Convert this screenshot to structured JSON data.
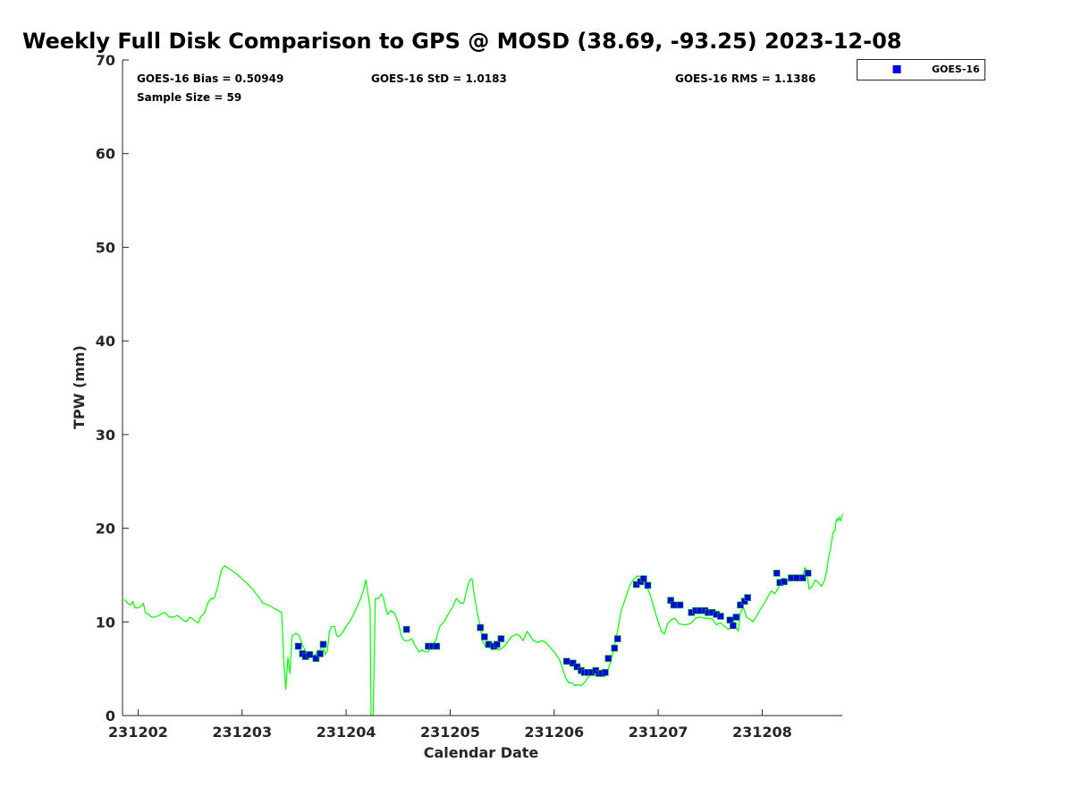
{
  "chart_data": {
    "type": "line",
    "title": "Weekly Full Disk Comparison to GPS @ MOSD (38.69, -93.25) 2023-12-08",
    "xlabel": "Calendar Date",
    "ylabel": "TPW (mm)",
    "ylim": [
      0,
      70
    ],
    "yticks": [
      0,
      10,
      20,
      30,
      40,
      50,
      60,
      70
    ],
    "xlim": [
      -0.15,
      6.77
    ],
    "xticks": [
      {
        "value": 0,
        "label": "231202"
      },
      {
        "value": 1,
        "label": "231203"
      },
      {
        "value": 2,
        "label": "231204"
      },
      {
        "value": 3,
        "label": "231205"
      },
      {
        "value": 4,
        "label": "231206"
      },
      {
        "value": 5,
        "label": "231207"
      },
      {
        "value": 6,
        "label": "231208"
      }
    ],
    "grid": false,
    "legend": {
      "position": "top-right",
      "entries": [
        "GOES-16"
      ]
    },
    "stats": {
      "bias": "GOES-16 Bias = 0.50949",
      "std": "GOES-16 StD = 1.0183",
      "rms": "GOES-16 RMS = 1.1386",
      "sample": "Sample Size = 59"
    },
    "series": [
      {
        "kind": "line",
        "color": "#00ff00",
        "points": [
          [
            -0.13,
            12.4
          ],
          [
            -0.1,
            12.0
          ],
          [
            -0.07,
            11.8
          ],
          [
            -0.05,
            12.2
          ],
          [
            -0.03,
            11.5
          ],
          [
            0.0,
            11.5
          ],
          [
            0.03,
            11.7
          ],
          [
            0.05,
            12.0
          ],
          [
            0.07,
            11.0
          ],
          [
            0.1,
            10.8
          ],
          [
            0.13,
            10.5
          ],
          [
            0.16,
            10.5
          ],
          [
            0.2,
            10.7
          ],
          [
            0.23,
            10.9
          ],
          [
            0.26,
            11.0
          ],
          [
            0.3,
            10.5
          ],
          [
            0.34,
            10.5
          ],
          [
            0.38,
            10.7
          ],
          [
            0.42,
            10.3
          ],
          [
            0.46,
            10.0
          ],
          [
            0.5,
            10.5
          ],
          [
            0.53,
            10.3
          ],
          [
            0.56,
            10.0
          ],
          [
            0.58,
            9.9
          ],
          [
            0.6,
            10.5
          ],
          [
            0.64,
            11.0
          ],
          [
            0.67,
            12.0
          ],
          [
            0.7,
            12.5
          ],
          [
            0.73,
            12.5
          ],
          [
            0.76,
            13.5
          ],
          [
            0.8,
            15.5
          ],
          [
            0.83,
            16.0
          ],
          [
            0.86,
            15.8
          ],
          [
            0.9,
            15.5
          ],
          [
            0.96,
            15.0
          ],
          [
            1.03,
            14.3
          ],
          [
            1.1,
            13.5
          ],
          [
            1.17,
            12.5
          ],
          [
            1.2,
            12.0
          ],
          [
            1.25,
            11.8
          ],
          [
            1.3,
            11.5
          ],
          [
            1.35,
            11.2
          ],
          [
            1.38,
            11.0
          ],
          [
            1.4,
            6.0
          ],
          [
            1.42,
            2.8
          ],
          [
            1.44,
            6.2
          ],
          [
            1.46,
            4.5
          ],
          [
            1.48,
            8.5
          ],
          [
            1.52,
            8.8
          ],
          [
            1.55,
            8.5
          ],
          [
            1.58,
            7.5
          ],
          [
            1.62,
            6.7
          ],
          [
            1.65,
            6.5
          ],
          [
            1.68,
            6.3
          ],
          [
            1.71,
            6.6
          ],
          [
            1.74,
            6.8
          ],
          [
            1.77,
            7.5
          ],
          [
            1.8,
            6.5
          ],
          [
            1.82,
            7.0
          ],
          [
            1.84,
            9.0
          ],
          [
            1.86,
            9.5
          ],
          [
            1.89,
            9.5
          ],
          [
            1.91,
            8.5
          ],
          [
            1.93,
            8.4
          ],
          [
            1.96,
            8.8
          ],
          [
            2.0,
            9.5
          ],
          [
            2.05,
            10.3
          ],
          [
            2.1,
            11.5
          ],
          [
            2.14,
            12.5
          ],
          [
            2.17,
            13.5
          ],
          [
            2.19,
            14.5
          ],
          [
            2.21,
            13.0
          ],
          [
            2.23,
            11.5
          ],
          [
            2.24,
            0.0
          ],
          [
            2.26,
            0.0
          ],
          [
            2.28,
            12.5
          ],
          [
            2.31,
            12.5
          ],
          [
            2.34,
            13.0
          ],
          [
            2.36,
            12.5
          ],
          [
            2.38,
            11.5
          ],
          [
            2.4,
            10.8
          ],
          [
            2.43,
            11.2
          ],
          [
            2.46,
            11.0
          ],
          [
            2.5,
            10.0
          ],
          [
            2.53,
            8.5
          ],
          [
            2.56,
            8.0
          ],
          [
            2.6,
            8.0
          ],
          [
            2.63,
            8.2
          ],
          [
            2.66,
            7.5
          ],
          [
            2.7,
            6.8
          ],
          [
            2.73,
            7.0
          ],
          [
            2.76,
            6.8
          ],
          [
            2.79,
            6.8
          ],
          [
            2.82,
            7.5
          ],
          [
            2.86,
            8.0
          ],
          [
            2.9,
            9.5
          ],
          [
            2.94,
            10.0
          ],
          [
            2.98,
            10.8
          ],
          [
            3.02,
            11.5
          ],
          [
            3.06,
            12.5
          ],
          [
            3.1,
            12.0
          ],
          [
            3.13,
            12.0
          ],
          [
            3.16,
            13.5
          ],
          [
            3.19,
            14.5
          ],
          [
            3.21,
            14.6
          ],
          [
            3.23,
            13.0
          ],
          [
            3.26,
            11.0
          ],
          [
            3.29,
            9.5
          ],
          [
            3.31,
            8.0
          ],
          [
            3.34,
            7.3
          ],
          [
            3.38,
            7.3
          ],
          [
            3.41,
            7.0
          ],
          [
            3.44,
            7.3
          ],
          [
            3.47,
            7.0
          ],
          [
            3.5,
            7.2
          ],
          [
            3.53,
            7.5
          ],
          [
            3.56,
            8.0
          ],
          [
            3.6,
            8.5
          ],
          [
            3.64,
            8.7
          ],
          [
            3.67,
            8.5
          ],
          [
            3.7,
            8.0
          ],
          [
            3.72,
            8.5
          ],
          [
            3.74,
            9.0
          ],
          [
            3.77,
            8.5
          ],
          [
            3.8,
            8.0
          ],
          [
            3.84,
            7.8
          ],
          [
            3.88,
            8.0
          ],
          [
            3.92,
            7.8
          ],
          [
            3.96,
            7.3
          ],
          [
            4.0,
            6.8
          ],
          [
            4.05,
            6.0
          ],
          [
            4.08,
            5.0
          ],
          [
            4.11,
            4.0
          ],
          [
            4.14,
            3.5
          ],
          [
            4.17,
            3.5
          ],
          [
            4.2,
            3.2
          ],
          [
            4.23,
            3.3
          ],
          [
            4.26,
            3.2
          ],
          [
            4.29,
            3.5
          ],
          [
            4.32,
            4.0
          ],
          [
            4.36,
            4.5
          ],
          [
            4.4,
            4.5
          ],
          [
            4.44,
            4.2
          ],
          [
            4.48,
            4.2
          ],
          [
            4.52,
            5.0
          ],
          [
            4.55,
            6.0
          ],
          [
            4.58,
            7.5
          ],
          [
            4.61,
            9.0
          ],
          [
            4.64,
            11.0
          ],
          [
            4.67,
            12.0
          ],
          [
            4.7,
            13.0
          ],
          [
            4.73,
            14.0
          ],
          [
            4.76,
            14.5
          ],
          [
            4.8,
            14.9
          ],
          [
            4.84,
            14.8
          ],
          [
            4.88,
            14.0
          ],
          [
            4.92,
            13.0
          ],
          [
            4.96,
            11.5
          ],
          [
            5.0,
            10.0
          ],
          [
            5.03,
            9.0
          ],
          [
            5.06,
            8.7
          ],
          [
            5.09,
            9.8
          ],
          [
            5.12,
            10.2
          ],
          [
            5.16,
            10.4
          ],
          [
            5.2,
            9.8
          ],
          [
            5.24,
            9.7
          ],
          [
            5.28,
            9.7
          ],
          [
            5.32,
            9.9
          ],
          [
            5.36,
            10.4
          ],
          [
            5.4,
            10.5
          ],
          [
            5.44,
            10.4
          ],
          [
            5.48,
            10.4
          ],
          [
            5.52,
            10.3
          ],
          [
            5.56,
            9.7
          ],
          [
            5.6,
            9.9
          ],
          [
            5.64,
            9.5
          ],
          [
            5.68,
            9.2
          ],
          [
            5.7,
            9.5
          ],
          [
            5.72,
            10.3
          ],
          [
            5.74,
            9.5
          ],
          [
            5.77,
            9.0
          ],
          [
            5.79,
            11.0
          ],
          [
            5.82,
            11.5
          ],
          [
            5.85,
            10.5
          ],
          [
            5.88,
            10.3
          ],
          [
            5.91,
            10.0
          ],
          [
            5.94,
            10.5
          ],
          [
            5.98,
            11.3
          ],
          [
            6.02,
            12.0
          ],
          [
            6.06,
            12.8
          ],
          [
            6.09,
            13.3
          ],
          [
            6.12,
            13.0
          ],
          [
            6.15,
            13.5
          ],
          [
            6.18,
            14.3
          ],
          [
            6.21,
            14.7
          ],
          [
            6.24,
            14.2
          ],
          [
            6.27,
            14.8
          ],
          [
            6.3,
            14.8
          ],
          [
            6.33,
            14.5
          ],
          [
            6.36,
            14.7
          ],
          [
            6.39,
            14.8
          ],
          [
            6.41,
            15.8
          ],
          [
            6.43,
            15.5
          ],
          [
            6.45,
            13.5
          ],
          [
            6.48,
            13.8
          ],
          [
            6.51,
            14.5
          ],
          [
            6.54,
            14.2
          ],
          [
            6.57,
            13.8
          ],
          [
            6.6,
            14.5
          ],
          [
            6.62,
            15.5
          ],
          [
            6.64,
            17.0
          ],
          [
            6.66,
            18.0
          ],
          [
            6.68,
            19.5
          ],
          [
            6.7,
            19.8
          ],
          [
            6.71,
            20.8
          ],
          [
            6.72,
            21.0
          ],
          [
            6.73,
            20.8
          ],
          [
            6.74,
            21.2
          ],
          [
            6.75,
            20.8
          ],
          [
            6.76,
            21.0
          ],
          [
            6.77,
            21.5
          ]
        ]
      },
      {
        "kind": "scatter",
        "name": "GOES-16",
        "color": "#0000e0",
        "edge": "#00c000",
        "points": [
          [
            1.54,
            7.4
          ],
          [
            1.58,
            6.6
          ],
          [
            1.61,
            6.3
          ],
          [
            1.65,
            6.5
          ],
          [
            1.71,
            6.1
          ],
          [
            1.75,
            6.6
          ],
          [
            1.78,
            7.6
          ],
          [
            2.58,
            9.2
          ],
          [
            2.79,
            7.4
          ],
          [
            2.83,
            7.4
          ],
          [
            2.87,
            7.4
          ],
          [
            3.29,
            9.4
          ],
          [
            3.33,
            8.4
          ],
          [
            3.37,
            7.6
          ],
          [
            3.42,
            7.4
          ],
          [
            3.45,
            7.6
          ],
          [
            3.49,
            8.2
          ],
          [
            4.12,
            5.8
          ],
          [
            4.18,
            5.6
          ],
          [
            4.22,
            5.2
          ],
          [
            4.26,
            4.8
          ],
          [
            4.29,
            4.6
          ],
          [
            4.32,
            4.6
          ],
          [
            4.36,
            4.6
          ],
          [
            4.4,
            4.8
          ],
          [
            4.43,
            4.5
          ],
          [
            4.46,
            4.5
          ],
          [
            4.49,
            4.6
          ],
          [
            4.52,
            6.1
          ],
          [
            4.58,
            7.2
          ],
          [
            4.61,
            8.2
          ],
          [
            4.79,
            14.0
          ],
          [
            4.83,
            14.3
          ],
          [
            4.86,
            14.6
          ],
          [
            4.9,
            13.9
          ],
          [
            5.12,
            12.3
          ],
          [
            5.15,
            11.8
          ],
          [
            5.21,
            11.8
          ],
          [
            5.32,
            11.0
          ],
          [
            5.36,
            11.2
          ],
          [
            5.4,
            11.2
          ],
          [
            5.45,
            11.2
          ],
          [
            5.48,
            11.0
          ],
          [
            5.52,
            11.0
          ],
          [
            5.56,
            10.8
          ],
          [
            5.6,
            10.6
          ],
          [
            5.69,
            10.2
          ],
          [
            5.72,
            9.6
          ],
          [
            5.75,
            10.5
          ],
          [
            5.79,
            11.8
          ],
          [
            5.83,
            12.2
          ],
          [
            5.86,
            12.6
          ],
          [
            6.14,
            15.2
          ],
          [
            6.17,
            14.2
          ],
          [
            6.21,
            14.3
          ],
          [
            6.28,
            14.7
          ],
          [
            6.33,
            14.7
          ],
          [
            6.39,
            14.7
          ],
          [
            6.44,
            15.2
          ]
        ]
      }
    ]
  }
}
